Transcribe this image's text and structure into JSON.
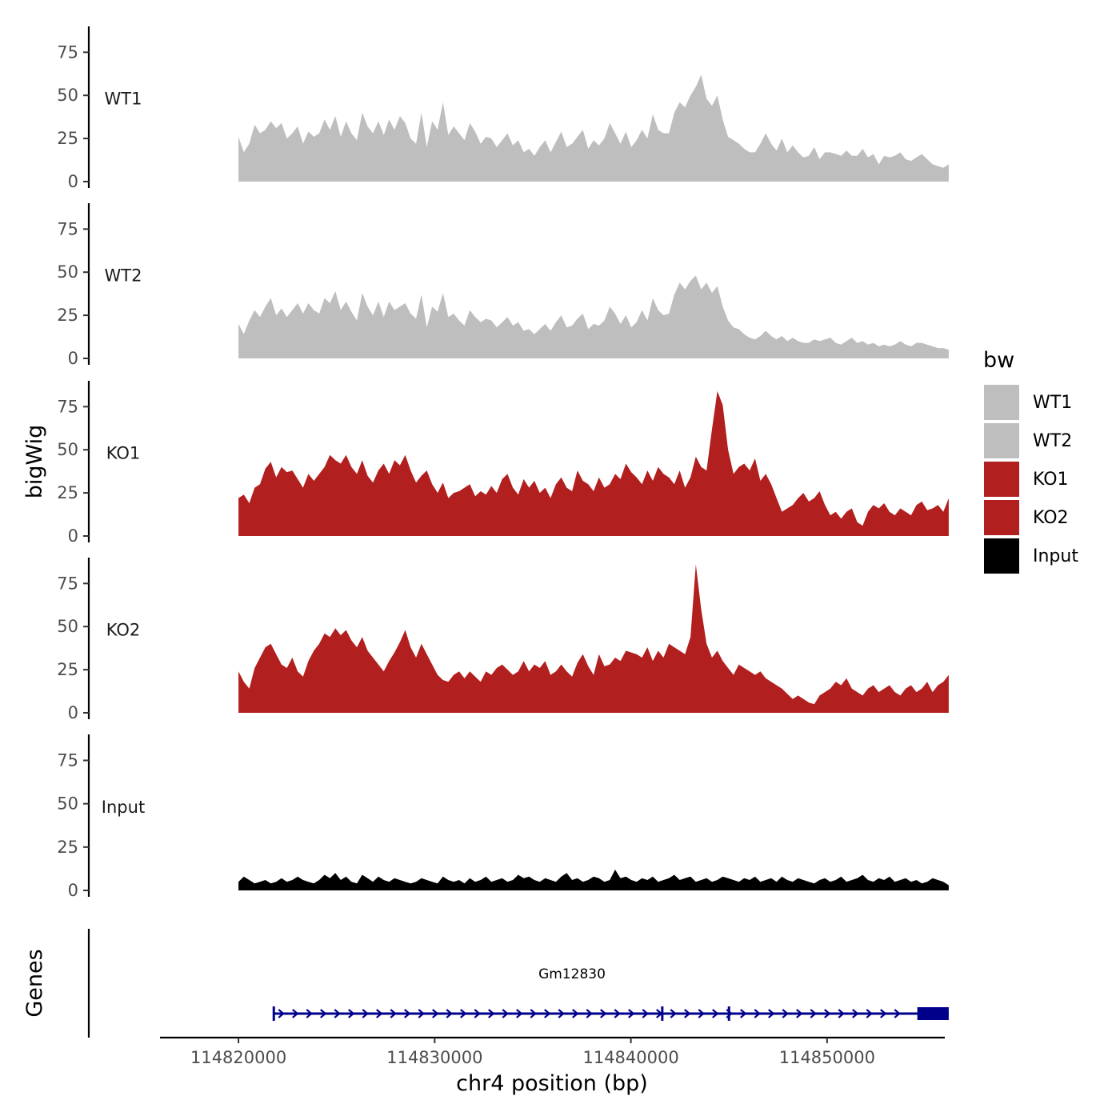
{
  "chart_data": {
    "type": "area",
    "y_title": "bigWig",
    "x_title": "chr4 position (bp)",
    "gene_panel_title": "Genes",
    "x_range": [
      114816000,
      114856000
    ],
    "y_range": [
      0,
      90
    ],
    "x_ticks": [
      114820000,
      114830000,
      114840000,
      114850000
    ],
    "x_tick_labels": [
      "114820000",
      "114830000",
      "114840000",
      "114850000"
    ],
    "y_ticks": [
      0,
      25,
      50,
      75
    ],
    "y_tick_labels": [
      "0",
      "25",
      "50",
      "75"
    ],
    "track_start": 114820000,
    "track_end": 114856200,
    "legend": {
      "title": "bw",
      "position": "right",
      "entries": [
        {
          "label": "WT1",
          "color": "#bebebe"
        },
        {
          "label": "WT2",
          "color": "#bebebe"
        },
        {
          "label": "KO1",
          "color": "#b21f1f"
        },
        {
          "label": "KO2",
          "color": "#b21f1f"
        },
        {
          "label": "Input",
          "color": "#000000"
        }
      ]
    },
    "series": [
      {
        "name": "WT1",
        "color": "#bebebe",
        "values": [
          26,
          17,
          22,
          33,
          28,
          30,
          35,
          31,
          34,
          25,
          28,
          32,
          22,
          29,
          26,
          28,
          36,
          30,
          38,
          26,
          35,
          28,
          24,
          40,
          32,
          28,
          35,
          27,
          36,
          30,
          38,
          34,
          25,
          22,
          40,
          20,
          35,
          30,
          46,
          27,
          32,
          28,
          24,
          34,
          29,
          22,
          26,
          25,
          20,
          24,
          28,
          21,
          24,
          17,
          19,
          15,
          20,
          24,
          17,
          23,
          29,
          20,
          22,
          26,
          30,
          19,
          24,
          21,
          25,
          34,
          28,
          22,
          29,
          20,
          24,
          30,
          25,
          39,
          30,
          28,
          28,
          40,
          46,
          43,
          50,
          55,
          62,
          48,
          44,
          50,
          36,
          26,
          24,
          22,
          19,
          17,
          17,
          22,
          28,
          22,
          18,
          25,
          17,
          21,
          17,
          14,
          15,
          20,
          13,
          17,
          17,
          16,
          15,
          18,
          15,
          15,
          19,
          14,
          16,
          10,
          15,
          14,
          15,
          17,
          13,
          12,
          14,
          16,
          13,
          10,
          9,
          8,
          10
        ]
      },
      {
        "name": "WT2",
        "color": "#bebebe",
        "values": [
          20,
          14,
          22,
          28,
          24,
          30,
          35,
          25,
          29,
          24,
          28,
          32,
          26,
          32,
          28,
          26,
          35,
          32,
          39,
          28,
          33,
          27,
          22,
          38,
          30,
          25,
          33,
          24,
          33,
          28,
          30,
          32,
          26,
          23,
          37,
          18,
          30,
          27,
          38,
          24,
          26,
          22,
          19,
          28,
          24,
          21,
          23,
          22,
          18,
          21,
          24,
          19,
          21,
          16,
          17,
          14,
          17,
          20,
          16,
          21,
          25,
          18,
          19,
          23,
          26,
          17,
          20,
          19,
          22,
          30,
          26,
          20,
          25,
          18,
          21,
          28,
          22,
          35,
          28,
          25,
          26,
          37,
          44,
          40,
          45,
          48,
          40,
          44,
          38,
          42,
          30,
          22,
          18,
          17,
          14,
          12,
          11,
          13,
          16,
          13,
          11,
          13,
          10,
          12,
          10,
          9,
          9,
          11,
          10,
          11,
          12,
          9,
          8,
          10,
          12,
          9,
          10,
          8,
          9,
          7,
          8,
          7,
          8,
          10,
          8,
          7,
          9,
          9,
          8,
          7,
          6,
          6,
          5
        ]
      },
      {
        "name": "KO1",
        "color": "#b21f1f",
        "values": [
          22,
          24,
          19,
          28,
          30,
          39,
          43,
          34,
          40,
          37,
          38,
          33,
          28,
          36,
          32,
          36,
          40,
          47,
          44,
          42,
          47,
          40,
          36,
          44,
          35,
          31,
          38,
          42,
          36,
          44,
          41,
          47,
          38,
          31,
          35,
          38,
          30,
          25,
          31,
          22,
          25,
          26,
          28,
          30,
          23,
          26,
          24,
          29,
          25,
          33,
          36,
          28,
          24,
          33,
          28,
          32,
          25,
          28,
          22,
          30,
          34,
          28,
          26,
          38,
          32,
          30,
          26,
          34,
          28,
          30,
          36,
          33,
          42,
          37,
          34,
          30,
          38,
          32,
          40,
          36,
          34,
          30,
          38,
          28,
          34,
          46,
          40,
          38,
          62,
          84,
          76,
          50,
          36,
          40,
          42,
          38,
          45,
          32,
          36,
          30,
          22,
          14,
          16,
          18,
          22,
          25,
          20,
          22,
          26,
          18,
          12,
          14,
          10,
          14,
          16,
          8,
          6,
          14,
          18,
          16,
          19,
          14,
          12,
          16,
          14,
          12,
          18,
          20,
          15,
          16,
          18,
          14,
          22
        ]
      },
      {
        "name": "KO2",
        "color": "#b21f1f",
        "values": [
          24,
          18,
          14,
          26,
          32,
          38,
          40,
          34,
          28,
          26,
          32,
          24,
          21,
          30,
          36,
          40,
          46,
          44,
          49,
          45,
          48,
          42,
          38,
          44,
          36,
          32,
          28,
          24,
          30,
          35,
          41,
          48,
          38,
          32,
          40,
          34,
          28,
          22,
          19,
          18,
          22,
          24,
          20,
          24,
          21,
          18,
          24,
          22,
          26,
          28,
          25,
          22,
          24,
          30,
          24,
          28,
          26,
          30,
          22,
          24,
          28,
          24,
          21,
          29,
          34,
          27,
          22,
          34,
          27,
          28,
          32,
          30,
          36,
          35,
          34,
          32,
          38,
          30,
          36,
          32,
          40,
          38,
          36,
          34,
          44,
          86,
          60,
          40,
          32,
          36,
          30,
          26,
          22,
          28,
          26,
          24,
          22,
          24,
          20,
          18,
          16,
          14,
          11,
          8,
          10,
          8,
          6,
          5,
          10,
          12,
          14,
          18,
          16,
          20,
          14,
          12,
          10,
          14,
          16,
          12,
          14,
          16,
          12,
          10,
          14,
          16,
          12,
          14,
          18,
          12,
          16,
          18,
          22
        ]
      },
      {
        "name": "Input",
        "color": "#000000",
        "values": [
          5,
          8,
          6,
          4,
          5,
          6,
          4,
          5,
          7,
          5,
          6,
          8,
          6,
          5,
          4,
          6,
          9,
          7,
          10,
          6,
          8,
          5,
          4,
          9,
          7,
          5,
          8,
          6,
          5,
          7,
          6,
          5,
          4,
          5,
          7,
          6,
          5,
          4,
          8,
          6,
          5,
          6,
          4,
          7,
          5,
          6,
          8,
          5,
          6,
          7,
          5,
          6,
          9,
          7,
          8,
          6,
          5,
          7,
          6,
          5,
          8,
          10,
          6,
          7,
          5,
          6,
          8,
          7,
          5,
          6,
          12,
          7,
          8,
          6,
          5,
          7,
          6,
          8,
          5,
          6,
          7,
          9,
          6,
          7,
          8,
          5,
          6,
          7,
          5,
          6,
          8,
          7,
          6,
          5,
          7,
          6,
          8,
          5,
          6,
          7,
          5,
          8,
          6,
          5,
          7,
          6,
          5,
          4,
          6,
          7,
          5,
          6,
          8,
          5,
          6,
          7,
          9,
          6,
          5,
          7,
          6,
          8,
          5,
          6,
          7,
          5,
          6,
          4,
          5,
          7,
          6,
          5,
          3
        ]
      }
    ],
    "gene": {
      "name": "Gm12830",
      "color": "#00008b",
      "tx_start": 114821800,
      "tx_end": 114856200,
      "thick_start": 114854600,
      "exon_boundaries": [
        114821800,
        114841600,
        114845000
      ],
      "strand": "+"
    }
  }
}
